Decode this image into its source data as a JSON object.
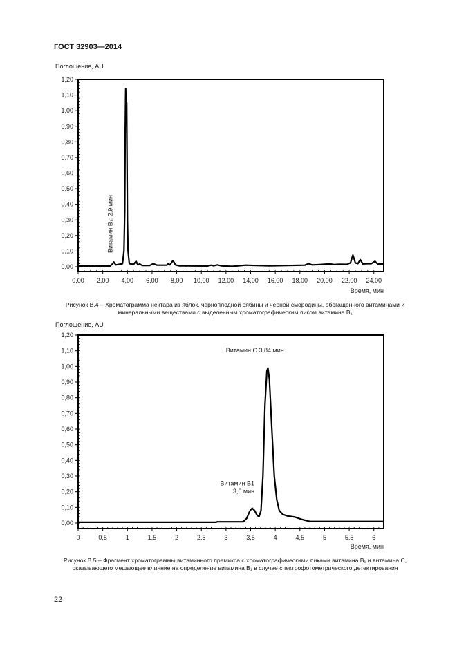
{
  "header": {
    "title": "ГОСТ 32903—2014"
  },
  "page_number": "22",
  "figures": [
    {
      "caption": "Рисунок В.4 – Хроматограмма нектара из яблок, черноплодной рябины и черной смородины, обогащенного витаминами и минеральными веществами с выделенным хроматографическим пиком витамина B₁"
    },
    {
      "caption": "Рисунок В.5 – Фрагмент хроматограммы витаминного премикса с хроматографическими пиками витамина B₁ и витамина С, оказывающего мешающее влияние на определение витамина B₁ в случае спектрофотометрического детектирования"
    }
  ],
  "chart_data": [
    {
      "type": "line",
      "ylabel": "Поглощение, AU",
      "xlabel": "Время, мин",
      "xlim": [
        0,
        24.8
      ],
      "ylim": [
        0,
        1.2
      ],
      "grid": false,
      "line_color": "#000000",
      "xticks": [
        "0,00",
        "2,00",
        "4,00",
        "6,00",
        "8,00",
        "10,00",
        "12,00",
        "14,00",
        "16,00",
        "18,00",
        "20,00",
        "22,00",
        "24,00"
      ],
      "xtick_values": [
        0,
        2,
        4,
        6,
        8,
        10,
        12,
        14,
        16,
        18,
        20,
        22,
        24
      ],
      "yticks": [
        "0,00",
        "0,10",
        "0,20",
        "0,30",
        "0,40",
        "0,50",
        "0,60",
        "0,70",
        "0,80",
        "0,90",
        "1,00",
        "1,10",
        "1,20"
      ],
      "ytick_values": [
        0,
        0.1,
        0.2,
        0.3,
        0.4,
        0.5,
        0.6,
        0.7,
        0.8,
        0.9,
        1.0,
        1.1,
        1.2
      ],
      "annotations": [
        {
          "text": "Витамин B₁: 2,9 мин",
          "x": 2.9,
          "orientation": "vertical"
        }
      ],
      "series": [
        {
          "points": [
            [
              0,
              0.005
            ],
            [
              2.6,
              0.005
            ],
            [
              2.75,
              0.015
            ],
            [
              2.9,
              0.03
            ],
            [
              3.05,
              0.012
            ],
            [
              3.3,
              0.015
            ],
            [
              3.6,
              0.02
            ],
            [
              3.72,
              0.1
            ],
            [
              3.78,
              0.35
            ],
            [
              3.82,
              0.88
            ],
            [
              3.86,
              1.14
            ],
            [
              3.9,
              1.0
            ],
            [
              3.94,
              1.05
            ],
            [
              3.97,
              0.65
            ],
            [
              4.0,
              0.3
            ],
            [
              4.05,
              0.1
            ],
            [
              4.15,
              0.02
            ],
            [
              4.5,
              0.015
            ],
            [
              4.7,
              0.035
            ],
            [
              4.85,
              0.012
            ],
            [
              5.0,
              0.018
            ],
            [
              5.2,
              0.008
            ],
            [
              5.8,
              0.008
            ],
            [
              6.1,
              0.02
            ],
            [
              6.4,
              0.01
            ],
            [
              7.2,
              0.01
            ],
            [
              7.3,
              0.018
            ],
            [
              7.45,
              0.012
            ],
            [
              7.7,
              0.04
            ],
            [
              7.9,
              0.012
            ],
            [
              8.2,
              0.006
            ],
            [
              10.5,
              0.005
            ],
            [
              10.8,
              0.01
            ],
            [
              11.0,
              0.006
            ],
            [
              11.3,
              0.012
            ],
            [
              11.6,
              0.006
            ],
            [
              12.5,
              0.002
            ],
            [
              13.0,
              0.006
            ],
            [
              13.6,
              0.01
            ],
            [
              14.5,
              0.008
            ],
            [
              15.5,
              0.006
            ],
            [
              17.0,
              0.008
            ],
            [
              18.4,
              0.01
            ],
            [
              18.7,
              0.02
            ],
            [
              19.0,
              0.012
            ],
            [
              19.6,
              0.014
            ],
            [
              20.4,
              0.018
            ],
            [
              20.8,
              0.014
            ],
            [
              21.2,
              0.016
            ],
            [
              21.8,
              0.015
            ],
            [
              22.1,
              0.025
            ],
            [
              22.3,
              0.075
            ],
            [
              22.5,
              0.025
            ],
            [
              22.7,
              0.02
            ],
            [
              22.9,
              0.045
            ],
            [
              23.1,
              0.018
            ],
            [
              23.5,
              0.02
            ],
            [
              23.8,
              0.02
            ],
            [
              24.1,
              0.035
            ],
            [
              24.3,
              0.018
            ],
            [
              24.8,
              0.018
            ]
          ]
        }
      ]
    },
    {
      "type": "line",
      "ylabel": "Поглощение, AU",
      "xlabel": "Время, мин",
      "xlim": [
        0,
        6.2
      ],
      "ylim": [
        0,
        1.2
      ],
      "grid": false,
      "line_color": "#000000",
      "xticks": [
        "0",
        "0,5",
        "1",
        "1,5",
        "2",
        "2,5",
        "3",
        "3,5",
        "4",
        "4,5",
        "5",
        "5,5",
        "6"
      ],
      "xtick_values": [
        0,
        0.5,
        1,
        1.5,
        2,
        2.5,
        3,
        3.5,
        4,
        4.5,
        5,
        5.5,
        6
      ],
      "yticks": [
        "0,00",
        "0,10",
        "0,20",
        "0,30",
        "0,40",
        "0,50",
        "0,60",
        "0,70",
        "0,80",
        "0,90",
        "1,00",
        "1,10",
        "1,20"
      ],
      "ytick_values": [
        0,
        0.1,
        0.2,
        0.3,
        0.4,
        0.5,
        0.6,
        0.7,
        0.8,
        0.9,
        1.0,
        1.1,
        1.2
      ],
      "annotations": [
        {
          "text": "Витамин С 3,84 мин",
          "x": 3.84,
          "y": 1.09
        },
        {
          "text": "Витамин B1",
          "x": 3.55,
          "y": 0.24
        },
        {
          "text": "3,6 мин",
          "x": 3.55,
          "y": 0.19
        }
      ],
      "series": [
        {
          "points": [
            [
              0,
              0.005
            ],
            [
              2.8,
              0.005
            ],
            [
              2.82,
              0.008
            ],
            [
              3.35,
              0.008
            ],
            [
              3.42,
              0.03
            ],
            [
              3.48,
              0.075
            ],
            [
              3.53,
              0.095
            ],
            [
              3.58,
              0.08
            ],
            [
              3.63,
              0.05
            ],
            [
              3.67,
              0.04
            ],
            [
              3.71,
              0.08
            ],
            [
              3.75,
              0.3
            ],
            [
              3.79,
              0.75
            ],
            [
              3.83,
              0.97
            ],
            [
              3.85,
              0.99
            ],
            [
              3.88,
              0.92
            ],
            [
              3.93,
              0.6
            ],
            [
              3.98,
              0.3
            ],
            [
              4.03,
              0.15
            ],
            [
              4.08,
              0.08
            ],
            [
              4.15,
              0.055
            ],
            [
              4.25,
              0.045
            ],
            [
              4.4,
              0.038
            ],
            [
              4.55,
              0.022
            ],
            [
              4.7,
              0.01
            ],
            [
              5.1,
              0.01
            ],
            [
              6.2,
              0.01
            ]
          ]
        }
      ]
    }
  ]
}
